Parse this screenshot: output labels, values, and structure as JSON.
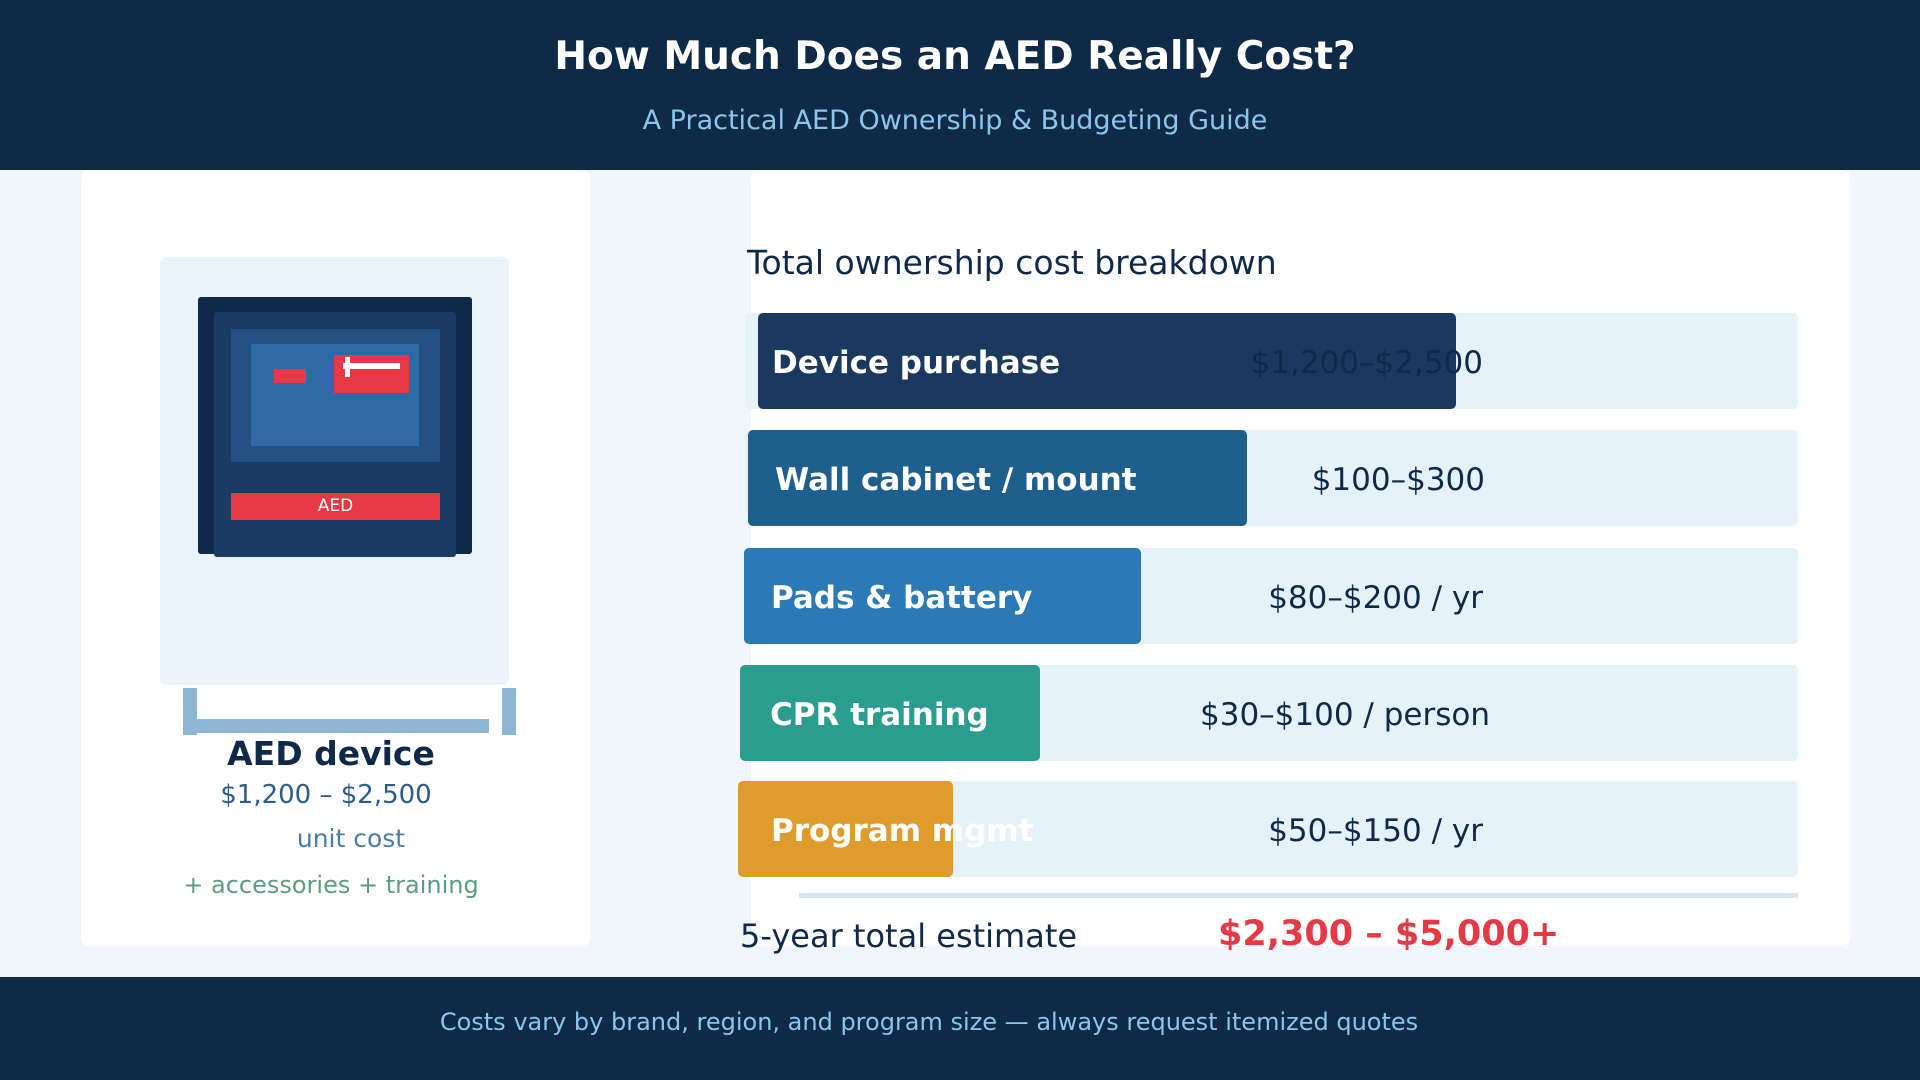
{
  "header": {
    "title": "How Much Does an AED Really Cost?",
    "subtitle": "A Practical AED Ownership & Budgeting Guide"
  },
  "device": {
    "strip_label": "AED",
    "name": "AED device",
    "price": "$1,200 – $2,500",
    "unit": "unit cost",
    "extras": "+ accessories + training"
  },
  "breakdown": {
    "title": "Total ownership cost breakdown",
    "items": [
      {
        "label": "Device purchase",
        "value": "$1,200–$2,500",
        "color": "#1b385e"
      },
      {
        "label": "Wall cabinet / mount",
        "value": "$100–$300",
        "color": "#1f5f8e"
      },
      {
        "label": "Pads & battery",
        "value": "$80–$200 / yr",
        "color": "#2b7ab5"
      },
      {
        "label": "CPR training",
        "value": "$30–$100 / person",
        "color": "#2a9d8f"
      },
      {
        "label": "Program mgmt",
        "value": "$50–$150 / yr",
        "color": "#e09b2d"
      }
    ],
    "total_label": "5-year total estimate",
    "total_value": "$2,300 – $5,000+"
  },
  "footer": {
    "note": "Costs vary by brand, region, and program size — always request itemized quotes"
  },
  "colors": {
    "navy": "#0e2a47",
    "accent_red": "#e63946",
    "light_blue": "#8cc5ea"
  }
}
